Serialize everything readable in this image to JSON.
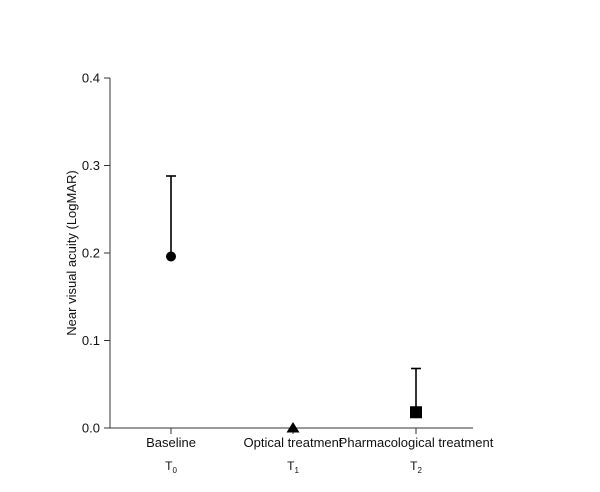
{
  "chart_data": {
    "type": "scatter",
    "ylabel": "Near visual acuity (LogMAR)",
    "ylim": [
      0.0,
      0.4
    ],
    "yticks": [
      "0.0",
      "0.1",
      "0.2",
      "0.3",
      "0.4"
    ],
    "categories": [
      {
        "label": "Baseline",
        "sub": "T",
        "sub_index": "0"
      },
      {
        "label": "Optical treatment",
        "sub": "T",
        "sub_index": "1"
      },
      {
        "label": "Pharmacological treatment",
        "sub": "T",
        "sub_index": "2"
      }
    ],
    "points": [
      {
        "category": "Baseline",
        "value": 0.196,
        "error_upper": 0.288,
        "marker": "circle"
      },
      {
        "category": "Optical treatment",
        "value": 0.0,
        "error_upper": null,
        "marker": "triangle"
      },
      {
        "category": "Pharmacological treatment",
        "value": 0.018,
        "error_upper": 0.068,
        "marker": "square"
      }
    ],
    "grid": false,
    "color": "#000000"
  }
}
